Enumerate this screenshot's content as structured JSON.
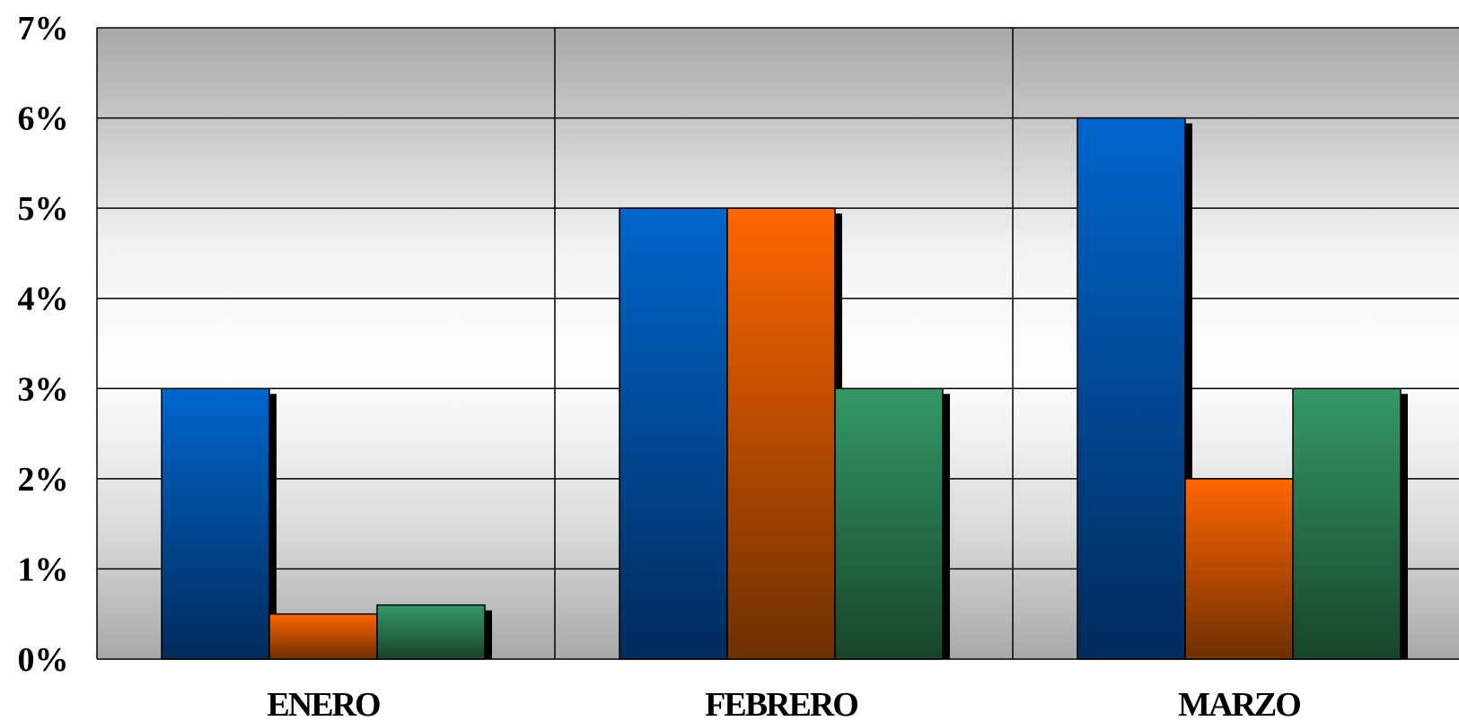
{
  "chart_data": {
    "type": "bar",
    "title": "",
    "xlabel": "",
    "ylabel": "",
    "categories": [
      "ENERO",
      "FEBRERO",
      "MARZO"
    ],
    "series": [
      {
        "values": [
          3,
          5,
          6
        ],
        "color": "#0066cc"
      },
      {
        "values": [
          0.5,
          5,
          2
        ],
        "color": "#ff6600"
      },
      {
        "values": [
          0.6,
          3,
          3
        ],
        "color": "#339966"
      }
    ],
    "ylim": [
      0,
      7
    ],
    "yticks": [
      "0%",
      "1%",
      "2%",
      "3%",
      "4%",
      "5%",
      "6%",
      "7%"
    ],
    "grid": true,
    "legend": "none"
  }
}
